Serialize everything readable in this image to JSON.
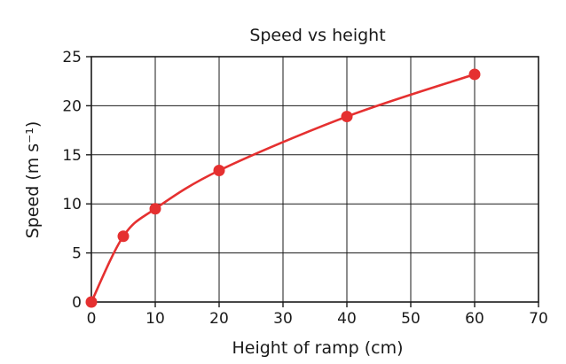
{
  "chart_data": {
    "type": "scatter",
    "title": "Speed vs height",
    "xlabel": "Height of ramp (cm)",
    "ylabel": "Speed (m s⁻¹)",
    "xlim": [
      0,
      70
    ],
    "ylim": [
      0,
      25
    ],
    "x_ticks": [
      "0",
      "10",
      "20",
      "30",
      "40",
      "50",
      "60",
      "70"
    ],
    "y_ticks": [
      "0",
      "5",
      "10",
      "15",
      "20",
      "25"
    ],
    "grid": true,
    "legend": "none",
    "series": [
      {
        "x": [
          0,
          5,
          10,
          20,
          40,
          60
        ],
        "y": [
          0,
          6.7,
          9.5,
          13.4,
          18.9,
          23.2
        ],
        "color": "#e53030",
        "marker": "circle",
        "fit_line": "smooth curve"
      }
    ]
  }
}
